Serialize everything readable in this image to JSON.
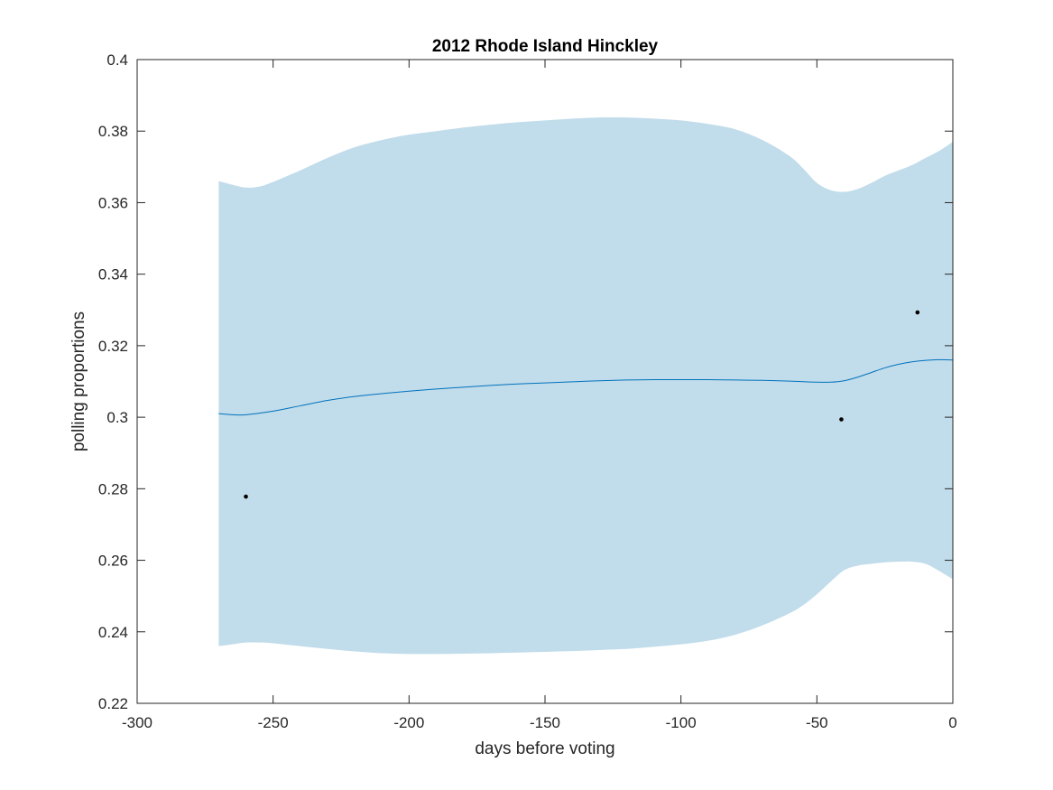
{
  "chart_data": {
    "type": "line",
    "title": "2012 Rhode Island Hinckley",
    "xlabel": "days before voting",
    "ylabel": "polling proportions",
    "xlim": [
      -300,
      0
    ],
    "ylim": [
      0.22,
      0.4
    ],
    "xticks": [
      -300,
      -250,
      -200,
      -150,
      -100,
      -50,
      0
    ],
    "xtick_labels": [
      "-300",
      "-250",
      "-200",
      "-150",
      "-100",
      "-50",
      "0"
    ],
    "yticks": [
      0.22,
      0.24,
      0.26,
      0.28,
      0.3,
      0.32,
      0.34,
      0.36,
      0.38,
      0.4
    ],
    "ytick_labels": [
      "0.22",
      "0.24",
      "0.26",
      "0.28",
      "0.3",
      "0.32",
      "0.34",
      "0.36",
      "0.38",
      "0.4"
    ],
    "grid": false,
    "colors": {
      "band": "#c1dcea",
      "line": "#0072bd",
      "points": "#000000",
      "axes": "#262626"
    },
    "band": {
      "x": [
        -270,
        -265,
        -260,
        -255,
        -250,
        -240,
        -230,
        -220,
        -210,
        -200,
        -190,
        -180,
        -170,
        -160,
        -150,
        -140,
        -130,
        -120,
        -110,
        -100,
        -90,
        -80,
        -70,
        -60,
        -55,
        -50,
        -45,
        -40,
        -35,
        -30,
        -25,
        -20,
        -15,
        -10,
        -5,
        0
      ],
      "upper": [
        0.366,
        0.365,
        0.3642,
        0.3645,
        0.3658,
        0.369,
        0.3725,
        0.3755,
        0.3775,
        0.379,
        0.38,
        0.381,
        0.3818,
        0.3825,
        0.383,
        0.3835,
        0.3838,
        0.3838,
        0.3835,
        0.383,
        0.382,
        0.3805,
        0.3775,
        0.373,
        0.3695,
        0.3655,
        0.3635,
        0.363,
        0.3638,
        0.3655,
        0.3675,
        0.369,
        0.3705,
        0.3725,
        0.3745,
        0.377
      ],
      "lower": [
        0.236,
        0.2365,
        0.237,
        0.237,
        0.2368,
        0.236,
        0.2352,
        0.2345,
        0.234,
        0.2338,
        0.2338,
        0.2339,
        0.234,
        0.2342,
        0.2344,
        0.2346,
        0.2349,
        0.2352,
        0.2358,
        0.2365,
        0.2375,
        0.2392,
        0.2418,
        0.2452,
        0.2475,
        0.2505,
        0.254,
        0.2572,
        0.2585,
        0.259,
        0.2594,
        0.2596,
        0.2596,
        0.259,
        0.257,
        0.2547
      ]
    },
    "series": [
      {
        "x": [
          -270,
          -265,
          -260,
          -250,
          -240,
          -230,
          -220,
          -210,
          -200,
          -190,
          -180,
          -170,
          -160,
          -150,
          -140,
          -130,
          -120,
          -110,
          -100,
          -90,
          -80,
          -70,
          -60,
          -50,
          -45,
          -40,
          -35,
          -30,
          -25,
          -20,
          -15,
          -10,
          -5,
          0
        ],
        "values": [
          0.301,
          0.3007,
          0.3007,
          0.3017,
          0.3032,
          0.3047,
          0.3058,
          0.3066,
          0.3073,
          0.3079,
          0.3084,
          0.3089,
          0.3093,
          0.3096,
          0.3099,
          0.3102,
          0.3104,
          0.3105,
          0.3105,
          0.3105,
          0.3104,
          0.3103,
          0.3101,
          0.3098,
          0.3098,
          0.3102,
          0.3112,
          0.3125,
          0.3138,
          0.3148,
          0.3155,
          0.3159,
          0.3161,
          0.316
        ]
      }
    ],
    "points": [
      {
        "x": -260,
        "y": 0.2778
      },
      {
        "x": -41,
        "y": 0.2994
      },
      {
        "x": -13,
        "y": 0.3293
      }
    ]
  }
}
